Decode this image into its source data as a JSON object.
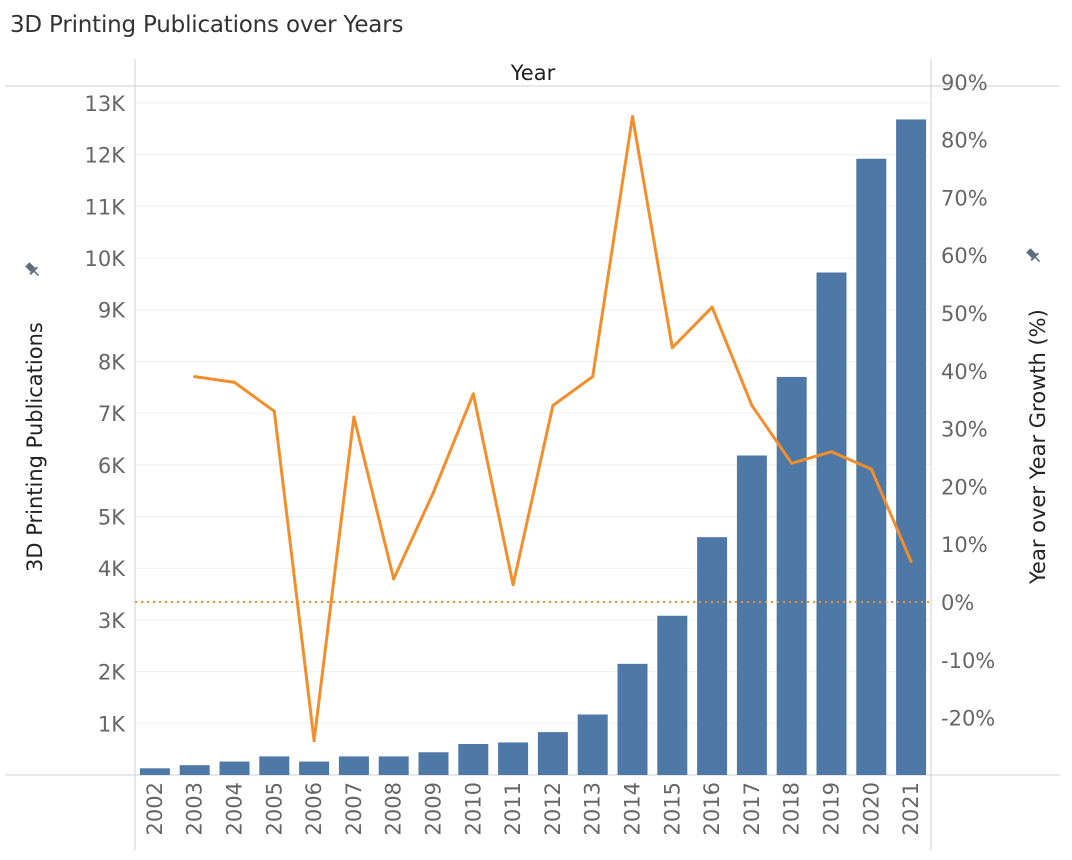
{
  "title": "3D Printing Publications over Years",
  "chart_data": {
    "type": "bar+line",
    "title": "3D Printing Publications over Years",
    "column_header": "Year",
    "categories": [
      "2002",
      "2003",
      "2004",
      "2005",
      "2006",
      "2007",
      "2008",
      "2009",
      "2010",
      "2011",
      "2012",
      "2013",
      "2014",
      "2015",
      "2016",
      "2017",
      "2018",
      "2019",
      "2020",
      "2021"
    ],
    "series": [
      {
        "name": "3D Printing Publications",
        "type": "bar",
        "axis": "left",
        "color": "#4e79a7",
        "values": [
          130,
          190,
          260,
          360,
          260,
          360,
          360,
          440,
          600,
          630,
          830,
          1170,
          2150,
          3080,
          4600,
          6180,
          7700,
          9720,
          11920,
          12680
        ]
      },
      {
        "name": "Year over Year Growth (%)",
        "type": "line",
        "axis": "right",
        "color": "#f28e2b",
        "values": [
          null,
          39,
          38,
          33,
          -24,
          32,
          4,
          19,
          36,
          3,
          34,
          39,
          84,
          44,
          51,
          34,
          24,
          26,
          23,
          7
        ]
      }
    ],
    "left_axis": {
      "label": "3D Printing Publications",
      "range": [
        0,
        13000
      ],
      "ticks": [
        1000,
        2000,
        3000,
        4000,
        5000,
        6000,
        7000,
        8000,
        9000,
        10000,
        11000,
        12000,
        13000
      ],
      "tick_labels": [
        "1K",
        "2K",
        "3K",
        "4K",
        "5K",
        "6K",
        "7K",
        "8K",
        "9K",
        "10K",
        "11K",
        "12K",
        "13K"
      ]
    },
    "right_axis": {
      "label": "Year over Year Growth (%)",
      "range": [
        -30,
        90
      ],
      "ticks": [
        -20,
        -10,
        0,
        10,
        20,
        30,
        40,
        50,
        60,
        70,
        80,
        90
      ],
      "tick_labels": [
        "-20%",
        "-10%",
        "0%",
        "10%",
        "20%",
        "30%",
        "40%",
        "50%",
        "60%",
        "70%",
        "80%",
        "90%"
      ]
    },
    "reference_line": {
      "axis": "right",
      "value": 0,
      "style": "dotted",
      "color": "#f28e2b"
    },
    "grid": true
  }
}
